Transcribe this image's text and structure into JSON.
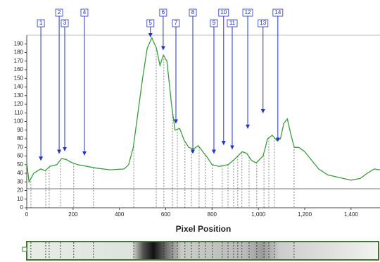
{
  "chart_data": {
    "type": "line",
    "x_label": "Pixel Position",
    "color": "#3c9c3c",
    "x": [
      0,
      10,
      30,
      60,
      80,
      100,
      130,
      150,
      170,
      190,
      220,
      260,
      300,
      360,
      420,
      440,
      460,
      480,
      500,
      520,
      540,
      560,
      575,
      590,
      605,
      625,
      640,
      660,
      680,
      700,
      720,
      740,
      760,
      780,
      800,
      830,
      870,
      900,
      930,
      950,
      970,
      990,
      1020,
      1040,
      1060,
      1080,
      1095,
      1110,
      1125,
      1140,
      1155,
      1175,
      1200,
      1230,
      1260,
      1300,
      1350,
      1400,
      1440,
      1470,
      1500,
      1525
    ],
    "values": [
      52,
      30,
      40,
      45,
      43,
      48,
      50,
      57,
      56,
      53,
      50,
      48,
      46,
      44,
      45,
      50,
      70,
      110,
      150,
      185,
      197,
      185,
      165,
      177,
      170,
      120,
      90,
      92,
      78,
      70,
      68,
      72,
      65,
      58,
      50,
      48,
      50,
      57,
      65,
      63,
      55,
      52,
      60,
      80,
      84,
      78,
      80,
      98,
      103,
      85,
      70,
      70,
      65,
      55,
      45,
      38,
      35,
      32,
      34,
      40,
      45,
      44
    ],
    "baseline": 22,
    "boundaries": [
      18,
      82,
      97,
      146,
      203,
      288,
      462,
      559,
      592,
      629,
      650,
      683,
      711,
      744,
      771,
      802,
      844,
      869,
      893,
      911,
      929,
      960,
      993,
      1024,
      1045,
      1069,
      1154
    ],
    "peaks": [
      {
        "label": "1",
        "x": 61,
        "y": 55
      },
      {
        "label": "2",
        "x": 140,
        "y": 63
      },
      {
        "label": "3",
        "x": 164,
        "y": 66
      },
      {
        "label": "4",
        "x": 249,
        "y": 61
      },
      {
        "label": "5",
        "x": 534,
        "y": 198
      },
      {
        "label": "6",
        "x": 589,
        "y": 183
      },
      {
        "label": "7",
        "x": 644,
        "y": 98
      },
      {
        "label": "8",
        "x": 717,
        "y": 63
      },
      {
        "label": "9",
        "x": 808,
        "y": 63
      },
      {
        "label": "10",
        "x": 850,
        "y": 73
      },
      {
        "label": "11",
        "x": 887,
        "y": 68
      },
      {
        "label": "12",
        "x": 954,
        "y": 92
      },
      {
        "label": "13",
        "x": 1020,
        "y": 110
      },
      {
        "label": "14",
        "x": 1084,
        "y": 77
      }
    ],
    "xlim": [
      0,
      1525
    ],
    "ylim": [
      0,
      200
    ],
    "xticks": [
      0,
      200,
      400,
      600,
      800,
      {
        "value": 1000,
        "label": "1,000"
      },
      {
        "value": 1200,
        "label": "1,200"
      },
      {
        "value": 1400,
        "label": "1,400"
      }
    ],
    "yticks": [
      0,
      10,
      20,
      30,
      40,
      50,
      60,
      70,
      80,
      90,
      100,
      110,
      120,
      130,
      140,
      150,
      160,
      170,
      180,
      190
    ]
  }
}
